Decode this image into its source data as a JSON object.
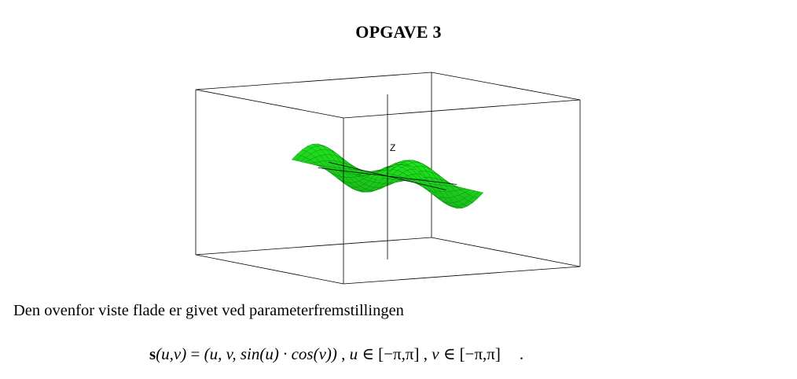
{
  "heading": "OPGAVE 3",
  "figure": {
    "z_axis_label": "Z",
    "colors": {
      "surface": "#1ee51e",
      "mesh": "#0a6e0a",
      "box": "#000000"
    }
  },
  "intro_text": "Den ovenfor viste flade er givet ved parameterfremstillingen",
  "formula": {
    "func_name": "s",
    "func_args": "(u,v)",
    "equals": " = ",
    "vector": "(u, v, sin(u) · cos(v))",
    "sep1": " , ",
    "u_var": "u",
    "u_domain": " ∈ [−π,π]",
    "sep2": " , ",
    "v_var": "v",
    "v_domain": " ∈ [−π,π]",
    "end": "."
  }
}
